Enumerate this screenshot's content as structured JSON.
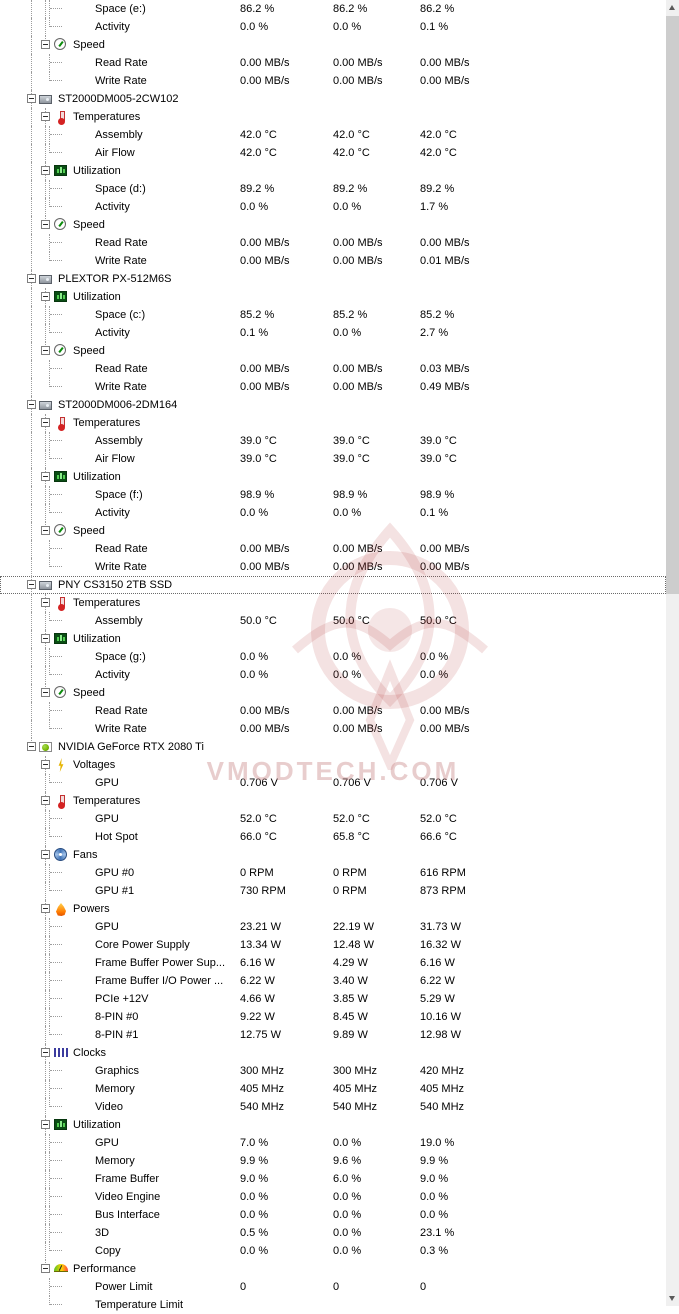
{
  "watermark": {
    "text": "VMODTECH.COM"
  },
  "tree": [
    {
      "level": "sensor",
      "label": "Space (e:)",
      "values": [
        "86.2 %",
        "86.2 %",
        "86.2 %"
      ]
    },
    {
      "level": "sensor",
      "label": "Activity",
      "values": [
        "0.0 %",
        "0.0 %",
        "0.1 %"
      ]
    },
    {
      "level": "group",
      "icon": "speed",
      "label": "Speed"
    },
    {
      "level": "sensor",
      "label": "Read Rate",
      "values": [
        "0.00 MB/s",
        "0.00 MB/s",
        "0.00 MB/s"
      ]
    },
    {
      "level": "sensor",
      "label": "Write Rate",
      "values": [
        "0.00 MB/s",
        "0.00 MB/s",
        "0.00 MB/s"
      ]
    },
    {
      "level": "device",
      "icon": "hdd",
      "label": "ST2000DM005-2CW102"
    },
    {
      "level": "group",
      "icon": "temperature",
      "label": "Temperatures"
    },
    {
      "level": "sensor",
      "label": "Assembly",
      "values": [
        "42.0 °C",
        "42.0 °C",
        "42.0 °C"
      ]
    },
    {
      "level": "sensor",
      "label": "Air Flow",
      "values": [
        "42.0 °C",
        "42.0 °C",
        "42.0 °C"
      ]
    },
    {
      "level": "group",
      "icon": "utilization",
      "label": "Utilization"
    },
    {
      "level": "sensor",
      "label": "Space (d:)",
      "values": [
        "89.2 %",
        "89.2 %",
        "89.2 %"
      ]
    },
    {
      "level": "sensor",
      "label": "Activity",
      "values": [
        "0.0 %",
        "0.0 %",
        "1.7 %"
      ]
    },
    {
      "level": "group",
      "icon": "speed",
      "label": "Speed"
    },
    {
      "level": "sensor",
      "label": "Read Rate",
      "values": [
        "0.00 MB/s",
        "0.00 MB/s",
        "0.00 MB/s"
      ]
    },
    {
      "level": "sensor",
      "label": "Write Rate",
      "values": [
        "0.00 MB/s",
        "0.00 MB/s",
        "0.01 MB/s"
      ]
    },
    {
      "level": "device",
      "icon": "hdd",
      "label": "PLEXTOR PX-512M6S"
    },
    {
      "level": "group",
      "icon": "utilization",
      "label": "Utilization"
    },
    {
      "level": "sensor",
      "label": "Space (c:)",
      "values": [
        "85.2 %",
        "85.2 %",
        "85.2 %"
      ]
    },
    {
      "level": "sensor",
      "label": "Activity",
      "values": [
        "0.1 %",
        "0.0 %",
        "2.7 %"
      ]
    },
    {
      "level": "group",
      "icon": "speed",
      "label": "Speed"
    },
    {
      "level": "sensor",
      "label": "Read Rate",
      "values": [
        "0.00 MB/s",
        "0.00 MB/s",
        "0.03 MB/s"
      ]
    },
    {
      "level": "sensor",
      "label": "Write Rate",
      "values": [
        "0.00 MB/s",
        "0.00 MB/s",
        "0.49 MB/s"
      ]
    },
    {
      "level": "device",
      "icon": "hdd",
      "label": "ST2000DM006-2DM164"
    },
    {
      "level": "group",
      "icon": "temperature",
      "label": "Temperatures"
    },
    {
      "level": "sensor",
      "label": "Assembly",
      "values": [
        "39.0 °C",
        "39.0 °C",
        "39.0 °C"
      ]
    },
    {
      "level": "sensor",
      "label": "Air Flow",
      "values": [
        "39.0 °C",
        "39.0 °C",
        "39.0 °C"
      ]
    },
    {
      "level": "group",
      "icon": "utilization",
      "label": "Utilization"
    },
    {
      "level": "sensor",
      "label": "Space (f:)",
      "values": [
        "98.9 %",
        "98.9 %",
        "98.9 %"
      ]
    },
    {
      "level": "sensor",
      "label": "Activity",
      "values": [
        "0.0 %",
        "0.0 %",
        "0.1 %"
      ]
    },
    {
      "level": "group",
      "icon": "speed",
      "label": "Speed"
    },
    {
      "level": "sensor",
      "label": "Read Rate",
      "values": [
        "0.00 MB/s",
        "0.00 MB/s",
        "0.00 MB/s"
      ]
    },
    {
      "level": "sensor",
      "label": "Write Rate",
      "values": [
        "0.00 MB/s",
        "0.00 MB/s",
        "0.00 MB/s"
      ]
    },
    {
      "level": "device",
      "icon": "ssd",
      "label": "PNY CS3150 2TB SSD",
      "selected": true
    },
    {
      "level": "group",
      "icon": "temperature",
      "label": "Temperatures"
    },
    {
      "level": "sensor",
      "label": "Assembly",
      "values": [
        "50.0 °C",
        "50.0 °C",
        "50.0 °C"
      ]
    },
    {
      "level": "group",
      "icon": "utilization",
      "label": "Utilization"
    },
    {
      "level": "sensor",
      "label": "Space (g:)",
      "values": [
        "0.0 %",
        "0.0 %",
        "0.0 %"
      ]
    },
    {
      "level": "sensor",
      "label": "Activity",
      "values": [
        "0.0 %",
        "0.0 %",
        "0.0 %"
      ]
    },
    {
      "level": "group",
      "icon": "speed",
      "label": "Speed"
    },
    {
      "level": "sensor",
      "label": "Read Rate",
      "values": [
        "0.00 MB/s",
        "0.00 MB/s",
        "0.00 MB/s"
      ]
    },
    {
      "level": "sensor",
      "label": "Write Rate",
      "values": [
        "0.00 MB/s",
        "0.00 MB/s",
        "0.00 MB/s"
      ]
    },
    {
      "level": "device",
      "icon": "gpu",
      "label": "NVIDIA GeForce RTX 2080 Ti"
    },
    {
      "level": "group",
      "icon": "voltage",
      "label": "Voltages"
    },
    {
      "level": "sensor",
      "label": "GPU",
      "values": [
        "0.706 V",
        "0.706 V",
        "0.706 V"
      ]
    },
    {
      "level": "group",
      "icon": "temperature",
      "label": "Temperatures"
    },
    {
      "level": "sensor",
      "label": "GPU",
      "values": [
        "52.0 °C",
        "52.0 °C",
        "52.0 °C"
      ]
    },
    {
      "level": "sensor",
      "label": "Hot Spot",
      "values": [
        "66.0 °C",
        "65.8 °C",
        "66.6 °C"
      ]
    },
    {
      "level": "group",
      "icon": "fan",
      "label": "Fans"
    },
    {
      "level": "sensor",
      "label": "GPU #0",
      "values": [
        "0 RPM",
        "0 RPM",
        "616 RPM"
      ]
    },
    {
      "level": "sensor",
      "label": "GPU #1",
      "values": [
        "730 RPM",
        "0 RPM",
        "873 RPM"
      ]
    },
    {
      "level": "group",
      "icon": "power",
      "label": "Powers"
    },
    {
      "level": "sensor",
      "label": "GPU",
      "values": [
        "23.21 W",
        "22.19 W",
        "31.73 W"
      ]
    },
    {
      "level": "sensor",
      "label": "Core Power Supply",
      "values": [
        "13.34 W",
        "12.48 W",
        "16.32 W"
      ]
    },
    {
      "level": "sensor",
      "label": "Frame Buffer Power Sup...",
      "values": [
        "6.16 W",
        "4.29 W",
        "6.16 W"
      ]
    },
    {
      "level": "sensor",
      "label": "Frame Buffer I/O Power ...",
      "values": [
        "6.22 W",
        "3.40 W",
        "6.22 W"
      ]
    },
    {
      "level": "sensor",
      "label": "PCIe +12V",
      "values": [
        "4.66 W",
        "3.85 W",
        "5.29 W"
      ]
    },
    {
      "level": "sensor",
      "label": "8-PIN #0",
      "values": [
        "9.22 W",
        "8.45 W",
        "10.16 W"
      ]
    },
    {
      "level": "sensor",
      "label": "8-PIN #1",
      "values": [
        "12.75 W",
        "9.89 W",
        "12.98 W"
      ]
    },
    {
      "level": "group",
      "icon": "clock",
      "label": "Clocks"
    },
    {
      "level": "sensor",
      "label": "Graphics",
      "values": [
        "300 MHz",
        "300 MHz",
        "420 MHz"
      ]
    },
    {
      "level": "sensor",
      "label": "Memory",
      "values": [
        "405 MHz",
        "405 MHz",
        "405 MHz"
      ]
    },
    {
      "level": "sensor",
      "label": "Video",
      "values": [
        "540 MHz",
        "540 MHz",
        "540 MHz"
      ]
    },
    {
      "level": "group",
      "icon": "utilization",
      "label": "Utilization"
    },
    {
      "level": "sensor",
      "label": "GPU",
      "values": [
        "7.0 %",
        "0.0 %",
        "19.0 %"
      ]
    },
    {
      "level": "sensor",
      "label": "Memory",
      "values": [
        "9.9 %",
        "9.6 %",
        "9.9 %"
      ]
    },
    {
      "level": "sensor",
      "label": "Frame Buffer",
      "values": [
        "9.0 %",
        "6.0 %",
        "9.0 %"
      ]
    },
    {
      "level": "sensor",
      "label": "Video Engine",
      "values": [
        "0.0 %",
        "0.0 %",
        "0.0 %"
      ]
    },
    {
      "level": "sensor",
      "label": "Bus Interface",
      "values": [
        "0.0 %",
        "0.0 %",
        "0.0 %"
      ]
    },
    {
      "level": "sensor",
      "label": "3D",
      "values": [
        "0.5 %",
        "0.0 %",
        "23.1 %"
      ]
    },
    {
      "level": "sensor",
      "label": "Copy",
      "values": [
        "0.0 %",
        "0.0 %",
        "0.3 %"
      ]
    },
    {
      "level": "group",
      "icon": "performance",
      "label": "Performance"
    },
    {
      "level": "sensor",
      "label": "Power Limit",
      "values": [
        "0",
        "0",
        "0"
      ]
    },
    {
      "level": "sensor",
      "label": "Temperature Limit",
      "values": []
    }
  ]
}
